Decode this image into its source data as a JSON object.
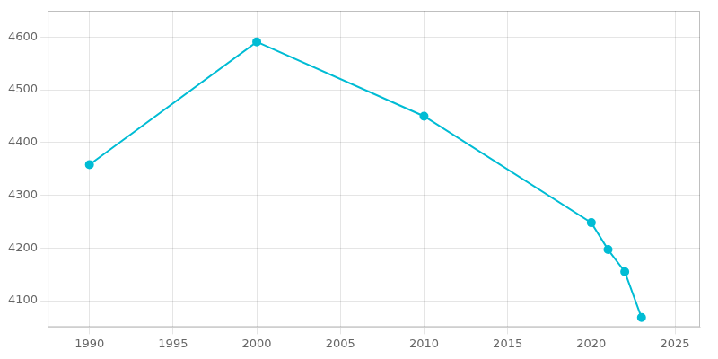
{
  "chart_data": {
    "type": "line",
    "x": [
      1990,
      2000,
      2010,
      2020,
      2021,
      2022,
      2023
    ],
    "values": [
      4358,
      4591,
      4450,
      4248,
      4197,
      4155,
      4068
    ],
    "color": "#00BCD4",
    "marker": "circle",
    "xlim": [
      1987.5,
      2026.5
    ],
    "xticks": [
      1990,
      1995,
      2000,
      2005,
      2010,
      2015,
      2020,
      2025
    ],
    "ylim": [
      4050,
      4650
    ],
    "yticks": [
      4100,
      4200,
      4300,
      4400,
      4500,
      4600
    ],
    "grid": true
  }
}
